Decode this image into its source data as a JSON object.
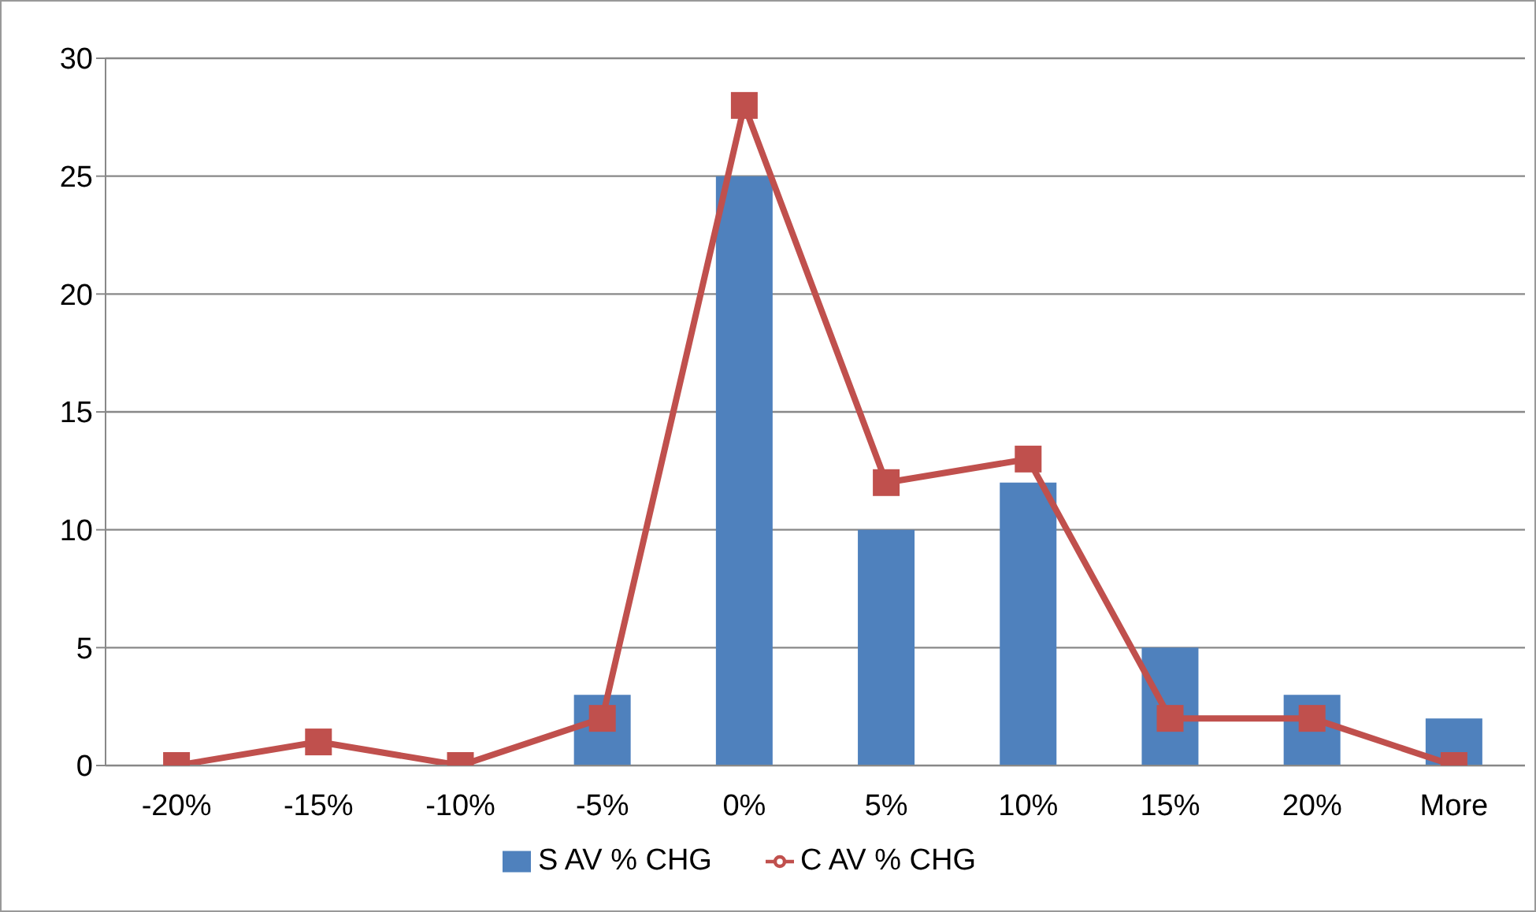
{
  "chart_data": {
    "type": "bar",
    "categories": [
      "-20%",
      "-15%",
      "-10%",
      "-5%",
      "0%",
      "5%",
      "10%",
      "15%",
      "20%",
      "More"
    ],
    "series": [
      {
        "name": "S AV % CHG",
        "color": "#4f81bd",
        "values": [
          0,
          0,
          0,
          3,
          25,
          10,
          12,
          5,
          3,
          2
        ]
      },
      {
        "name": "C AV % CHG",
        "type": "line",
        "color": "#c0504d",
        "values": [
          0,
          1,
          0,
          2,
          28,
          12,
          13,
          2,
          2,
          0
        ],
        "marker": "square",
        "line_style": "solid"
      }
    ],
    "ylim": [
      0,
      30
    ],
    "yticks": [
      0,
      5,
      10,
      15,
      20,
      25,
      30
    ],
    "grid": "y",
    "legend": "bottom"
  }
}
